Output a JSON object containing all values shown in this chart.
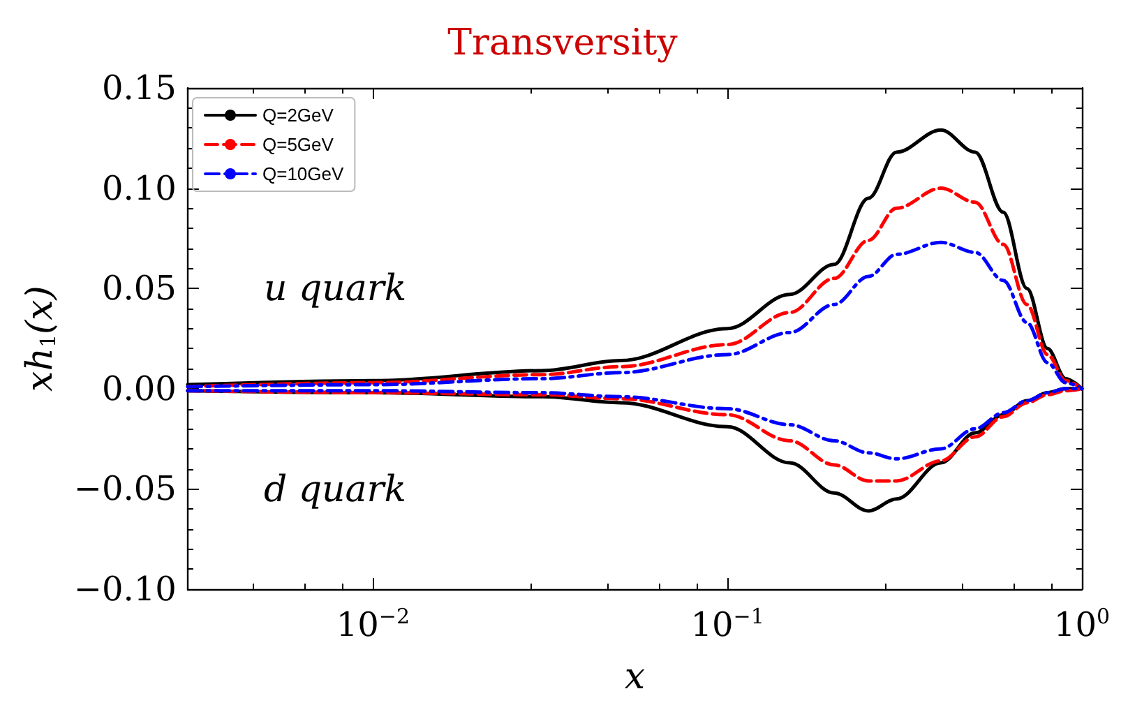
{
  "chart_data": {
    "type": "line",
    "title": "Transversity",
    "xlabel": "x",
    "ylabel": "xh$_{1}$(x)",
    "log": "x",
    "xlim": [
      0.003,
      1
    ],
    "xticks": [
      {
        "value": 0.01,
        "label": "10$^{−2}$"
      },
      {
        "value": 0.1,
        "label": "10$^{−1}$"
      },
      {
        "value": 1,
        "label": "10$^{0}$"
      }
    ],
    "ylim": [
      -0.1,
      0.15
    ],
    "yticks": [
      {
        "value": -0.1,
        "label": "−0.10"
      },
      {
        "value": -0.05,
        "label": "−0.05"
      },
      {
        "value": 0,
        "label": "0.00"
      },
      {
        "value": 0.05,
        "label": "0.05"
      },
      {
        "value": 0.1,
        "label": "0.10"
      },
      {
        "value": 0.15,
        "label": "0.15"
      }
    ],
    "grid": false,
    "legend": "top left",
    "marker": "none",
    "x": [
      0.003,
      0.01,
      0.03,
      0.05,
      0.1,
      0.15,
      0.2,
      0.25,
      0.3,
      0.4,
      0.5,
      0.6,
      0.7,
      0.8,
      0.9,
      1
    ],
    "series": [
      {
        "name": "Q=2GeV",
        "color": "#000000",
        "line_style": "solid",
        "values": [
          0.002,
          0.004,
          0.009,
          0.014,
          0.03,
          0.047,
          0.062,
          0.095,
          0.118,
          0.129,
          0.118,
          0.088,
          0.05,
          0.02,
          0.005,
          0
        ]
      },
      {
        "name": "Q=5GeV",
        "color": "#ff0000",
        "line_style": "dashed",
        "values": [
          0.001,
          0.003,
          0.007,
          0.011,
          0.022,
          0.038,
          0.055,
          0.074,
          0.09,
          0.1,
          0.093,
          0.072,
          0.042,
          0.017,
          0.004,
          0
        ]
      },
      {
        "name": "Q=10GeV",
        "color": "#0000ff",
        "line_style": "dashdot",
        "values": [
          0.001,
          0.002,
          0.005,
          0.008,
          0.017,
          0.028,
          0.042,
          0.056,
          0.067,
          0.073,
          0.068,
          0.054,
          0.033,
          0.013,
          0.003,
          0
        ]
      },
      {
        "color": "#000000",
        "line_style": "solid",
        "values": [
          -0.001,
          -0.002,
          -0.004,
          -0.007,
          -0.019,
          -0.037,
          -0.052,
          -0.061,
          -0.055,
          -0.037,
          -0.022,
          -0.013,
          -0.006,
          -0.002,
          0,
          0
        ]
      },
      {
        "color": "#ff0000",
        "line_style": "dashed",
        "values": [
          -0.001,
          -0.002,
          -0.003,
          -0.005,
          -0.013,
          -0.026,
          -0.038,
          -0.046,
          -0.046,
          -0.036,
          -0.024,
          -0.014,
          -0.007,
          -0.003,
          -0.001,
          0
        ]
      },
      {
        "color": "#0000ff",
        "line_style": "dashdot",
        "values": [
          -0.001,
          -0.001,
          -0.002,
          -0.004,
          -0.01,
          -0.018,
          -0.026,
          -0.032,
          -0.035,
          -0.03,
          -0.02,
          -0.012,
          -0.006,
          -0.002,
          0,
          0
        ]
      }
    ],
    "annotations": [
      "u quark",
      "d quark"
    ]
  }
}
